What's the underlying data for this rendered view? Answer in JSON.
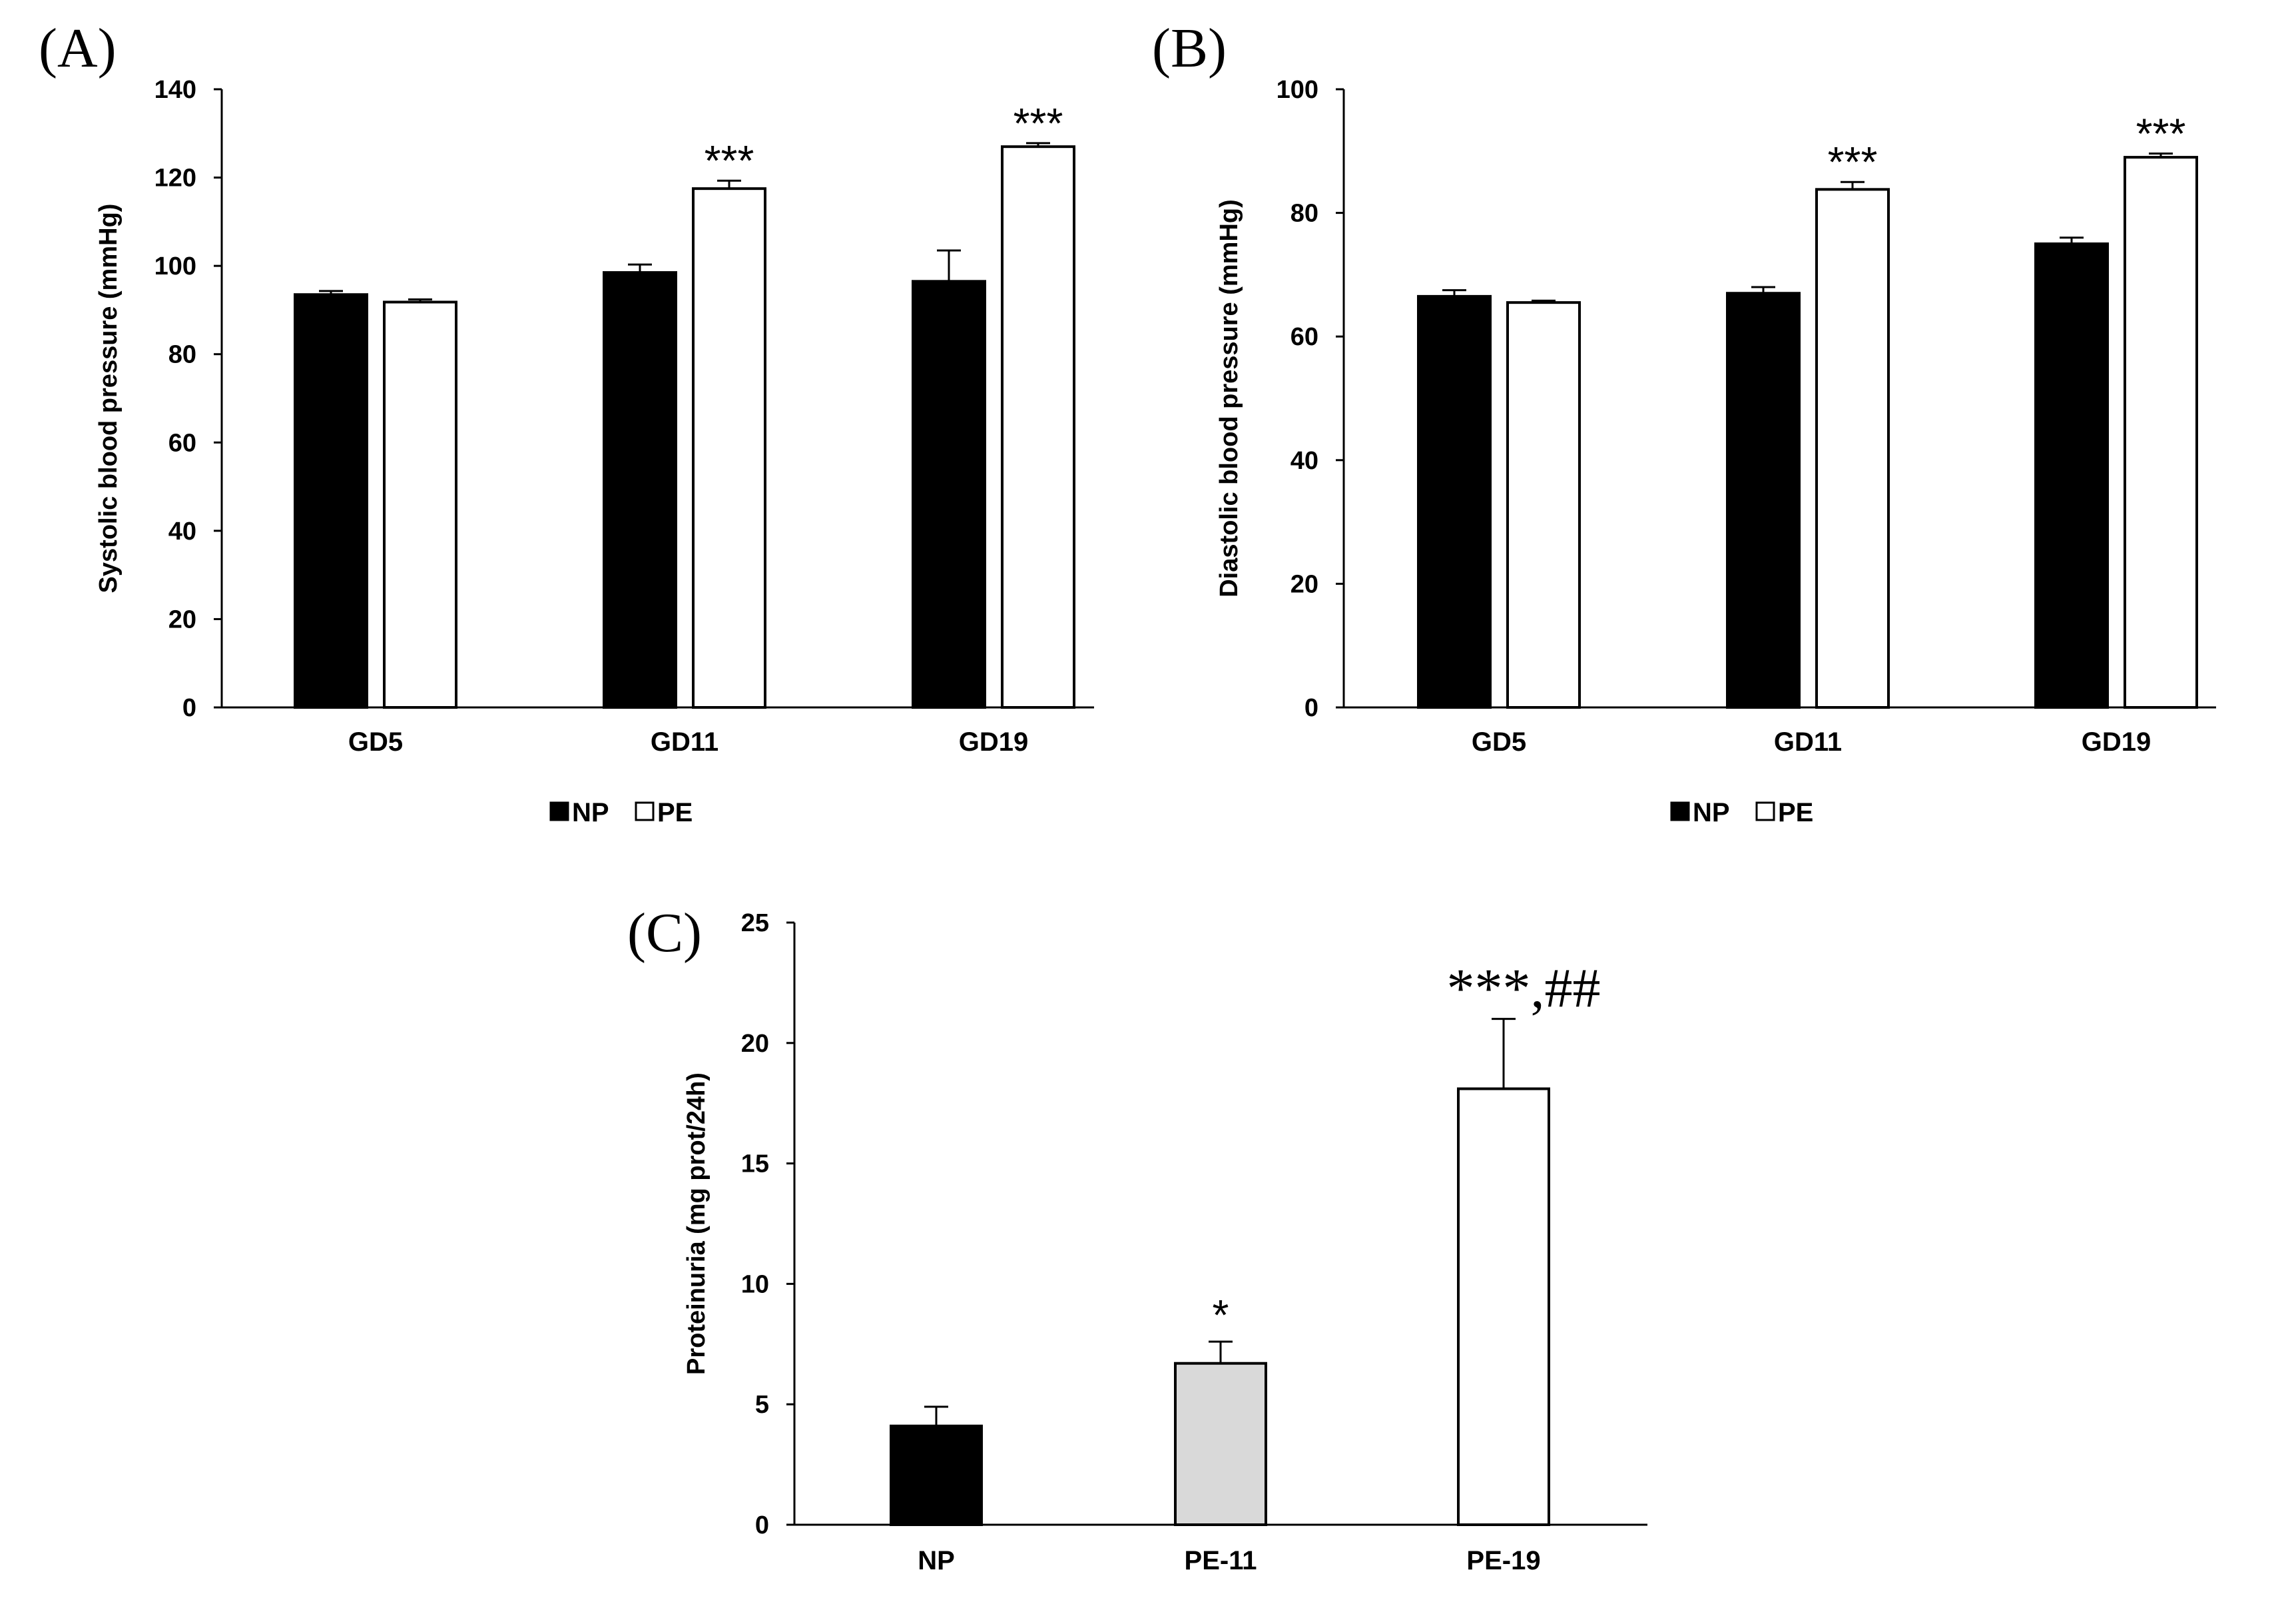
{
  "figure": {
    "panel_labels": [
      "(A)",
      "(B)",
      "(C)"
    ]
  },
  "colors": {
    "NP": "#000000",
    "PE": "#ffffff",
    "PE-11": "#d9d9d9",
    "PE-19": "#ffffff",
    "axis": "#000000"
  },
  "chart_data": [
    {
      "id": "A",
      "type": "bar",
      "title": "",
      "xlabel": "",
      "ylabel": "Systolic blood pressure (mmHg)",
      "ylim": [
        0,
        140
      ],
      "yticks": [
        0,
        20,
        40,
        60,
        80,
        100,
        120,
        140
      ],
      "categories": [
        "GD5",
        "GD11",
        "GD19"
      ],
      "series": [
        {
          "name": "NP",
          "values": [
            93.5,
            98.5,
            96.5
          ],
          "errors": [
            0.8,
            1.8,
            7.0
          ]
        },
        {
          "name": "PE",
          "values": [
            91.8,
            117.5,
            127.0
          ],
          "errors": [
            0.6,
            1.8,
            0.8
          ]
        }
      ],
      "annotations": [
        {
          "series": "PE",
          "category": "GD11",
          "text": "***"
        },
        {
          "series": "PE",
          "category": "GD19",
          "text": "***"
        }
      ],
      "legend": [
        "NP",
        "PE"
      ],
      "legend_position": "bottom"
    },
    {
      "id": "B",
      "type": "bar",
      "title": "",
      "xlabel": "",
      "ylabel": "Diastolic blood pressure (mmHg)",
      "ylim": [
        0,
        100
      ],
      "yticks": [
        0,
        20,
        40,
        60,
        80,
        100
      ],
      "categories": [
        "GD5",
        "GD11",
        "GD19"
      ],
      "series": [
        {
          "name": "NP",
          "values": [
            66.5,
            67.0,
            75.0
          ],
          "errors": [
            1.0,
            1.0,
            1.0
          ]
        },
        {
          "name": "PE",
          "values": [
            65.5,
            83.8,
            89.0
          ],
          "errors": [
            0.3,
            1.2,
            0.6
          ]
        }
      ],
      "annotations": [
        {
          "series": "PE",
          "category": "GD11",
          "text": "***"
        },
        {
          "series": "PE",
          "category": "GD19",
          "text": "***"
        }
      ],
      "legend": [
        "NP",
        "PE"
      ],
      "legend_position": "bottom"
    },
    {
      "id": "C",
      "type": "bar",
      "title": "",
      "xlabel": "",
      "ylabel": "Proteinuria (mg prot/24h)",
      "ylim": [
        0,
        25
      ],
      "yticks": [
        0,
        5,
        10,
        15,
        20,
        25
      ],
      "categories": [
        "NP",
        "PE-11",
        "PE-19"
      ],
      "values": [
        4.1,
        6.7,
        18.1
      ],
      "errors": [
        0.8,
        0.9,
        2.9
      ],
      "annotations": [
        {
          "category": "PE-11",
          "text": "*"
        },
        {
          "category": "PE-19",
          "text": "***,##"
        }
      ]
    }
  ]
}
